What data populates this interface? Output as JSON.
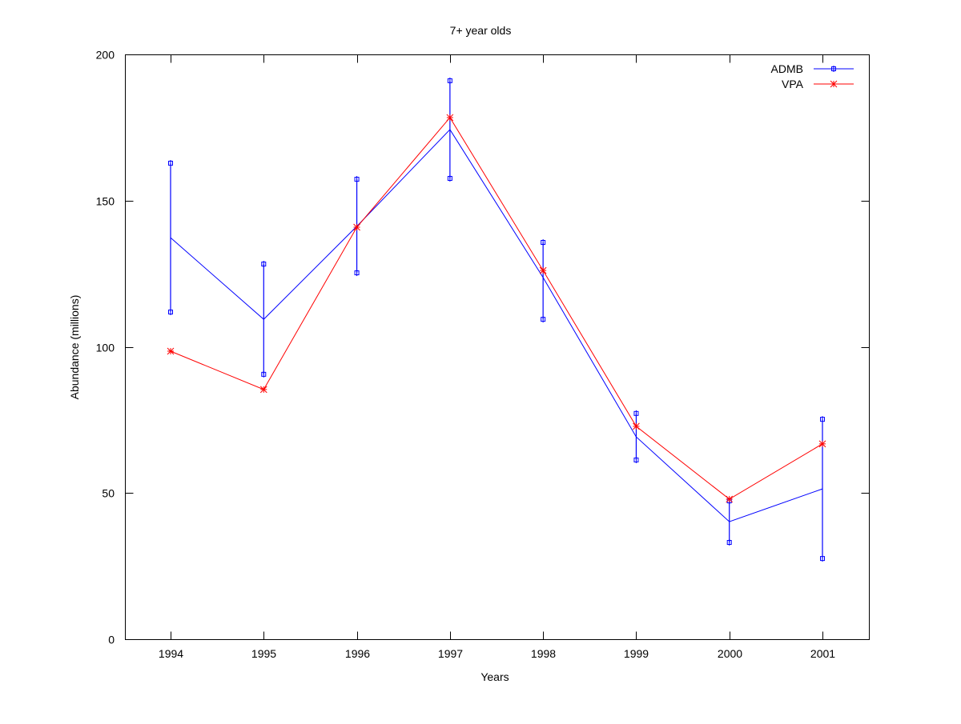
{
  "chart_data": {
    "type": "line",
    "title": "7+ year olds",
    "xlabel": "Years",
    "ylabel": "Abundance (millions)",
    "ylim": [
      0,
      200
    ],
    "yticks": [
      0,
      50,
      100,
      150,
      200
    ],
    "categories": [
      "1994",
      "1995",
      "1996",
      "1997",
      "1998",
      "1999",
      "2000",
      "2001"
    ],
    "legend_position": "top-right",
    "grid": false,
    "series": [
      {
        "name": "ADMB",
        "color": "#0000ff",
        "marker": "square",
        "values": [
          137.3,
          109.4,
          141.2,
          174.3,
          123.7,
          69.2,
          40.2,
          51.4
        ],
        "error_lower": [
          111.9,
          90.6,
          125.3,
          157.6,
          109.4,
          61.3,
          33.1,
          27.6
        ],
        "error_upper": [
          162.8,
          128.3,
          157.3,
          191.0,
          135.7,
          77.2,
          47.3,
          75.2
        ]
      },
      {
        "name": "VPA",
        "color": "#ff0000",
        "marker": "star",
        "values": [
          98.5,
          85.4,
          140.9,
          178.4,
          126.1,
          72.8,
          47.9,
          66.8
        ]
      }
    ]
  }
}
